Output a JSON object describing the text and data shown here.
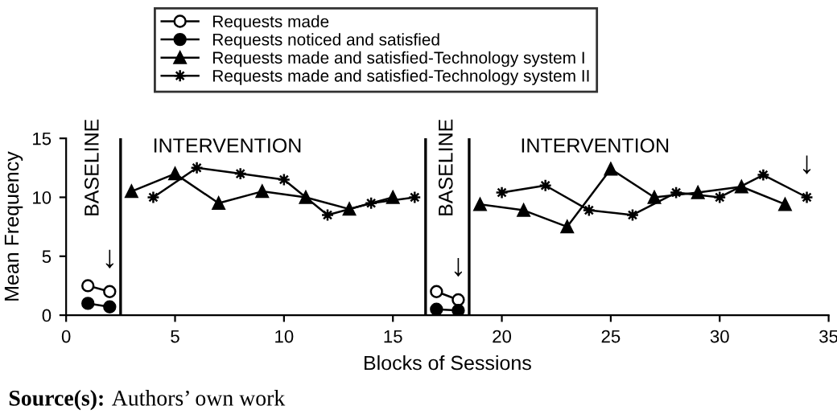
{
  "chart_data": {
    "type": "line",
    "xlabel": "Blocks of Sessions",
    "ylabel": "Mean Frequency",
    "xlim": [
      0,
      35
    ],
    "ylim": [
      0,
      15
    ],
    "xticks": [
      0,
      5,
      10,
      15,
      20,
      25,
      30,
      35
    ],
    "yticks": [
      0,
      5,
      10,
      15
    ],
    "grid": false,
    "legend": "top",
    "series": [
      {
        "name": "Requests made",
        "color": "#000000",
        "marker": "circle",
        "colors": [
          "#ffffff",
          "#ffffff",
          "#ffffff",
          "#ffffff",
          "#ffffff"
        ],
        "x": [
          1,
          2,
          10,
          17,
          18
        ],
        "values": [
          2.5,
          2.0,
          null,
          2.0,
          1.3
        ]
      },
      {
        "name": "Requests noticed and satisfied",
        "color": "#000000",
        "marker": "circle",
        "x": [
          1,
          2,
          10,
          17,
          18
        ],
        "values": [
          1.0,
          0.7,
          null,
          0.5,
          0.4
        ]
      },
      {
        "name": "Requests made and satisfied-Technology system I",
        "color": "#000000",
        "marker": "triangle",
        "x": [
          3,
          5,
          7,
          9,
          11,
          13,
          15,
          17,
          19,
          21,
          23,
          25,
          27,
          29,
          31,
          33
        ],
        "values": [
          10.5,
          12.0,
          9.5,
          10.5,
          10.0,
          9.0,
          10.0,
          null,
          9.4,
          8.9,
          7.5,
          12.4,
          10.0,
          10.4,
          10.9,
          9.4
        ]
      },
      {
        "name": "Requests made and satisfied-Technology system II",
        "color": "#000000",
        "marker": "star",
        "x": [
          4,
          6,
          8,
          10,
          12,
          14,
          16,
          18,
          20,
          22,
          24,
          26,
          28,
          30,
          32,
          34
        ],
        "values": [
          10.0,
          12.5,
          12.0,
          11.5,
          8.5,
          9.5,
          10.0,
          null,
          10.4,
          11.0,
          8.9,
          8.5,
          10.4,
          10.0,
          11.9,
          10.0
        ]
      }
    ],
    "ref_lines": [
      {
        "axis": "x",
        "value": 2.5,
        "color": "#000000"
      },
      {
        "axis": "x",
        "value": 16.5,
        "color": "#000000"
      },
      {
        "axis": "x",
        "value": 18.5,
        "color": "#000000"
      }
    ],
    "annotations": [
      "BASELINE",
      "INTERVENTION",
      "BASELINE",
      "INTERVENTION",
      "↓",
      "↓",
      "↓",
      "Source(s): Authors’ own work"
    ]
  }
}
